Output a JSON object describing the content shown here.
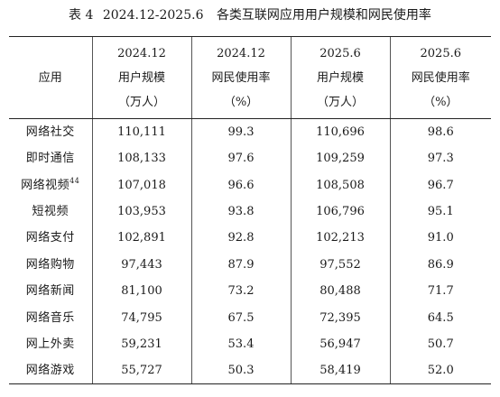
{
  "title": {
    "label": "表 4",
    "period": "2024.12-2025.6",
    "text": "各类互联网应用用户规模和网民使用率"
  },
  "table": {
    "app_header": "应用",
    "columns": [
      {
        "period": "2024.12",
        "metric": "用户规模",
        "unit": "（万人）"
      },
      {
        "period": "2024.12",
        "metric": "网民使用率",
        "unit": "（%）"
      },
      {
        "period": "2025.6",
        "metric": "用户规模",
        "unit": "（万人）"
      },
      {
        "period": "2025.6",
        "metric": "网民使用率",
        "unit": "（%）"
      }
    ],
    "rows": [
      {
        "name": "网络社交",
        "note": "",
        "users_2412": "110,111",
        "rate_2412": "99.3",
        "users_2506": "110,696",
        "rate_2506": "98.6"
      },
      {
        "name": "即时通信",
        "note": "",
        "users_2412": "108,133",
        "rate_2412": "97.6",
        "users_2506": "109,259",
        "rate_2506": "97.3"
      },
      {
        "name": "网络视频",
        "note": "44",
        "users_2412": "107,018",
        "rate_2412": "96.6",
        "users_2506": "108,508",
        "rate_2506": "96.7"
      },
      {
        "name": "短视频",
        "note": "",
        "users_2412": "103,953",
        "rate_2412": "93.8",
        "users_2506": "106,796",
        "rate_2506": "95.1"
      },
      {
        "name": "网络支付",
        "note": "",
        "users_2412": "102,891",
        "rate_2412": "92.8",
        "users_2506": "102,213",
        "rate_2506": "91.0"
      },
      {
        "name": "网络购物",
        "note": "",
        "users_2412": "97,443",
        "rate_2412": "87.9",
        "users_2506": "97,552",
        "rate_2506": "86.9"
      },
      {
        "name": "网络新闻",
        "note": "",
        "users_2412": "81,100",
        "rate_2412": "73.2",
        "users_2506": "80,488",
        "rate_2506": "71.7"
      },
      {
        "name": "网络音乐",
        "note": "",
        "users_2412": "74,795",
        "rate_2412": "67.5",
        "users_2506": "72,395",
        "rate_2506": "64.5"
      },
      {
        "name": "网上外卖",
        "note": "",
        "users_2412": "59,231",
        "rate_2412": "53.4",
        "users_2506": "56,947",
        "rate_2506": "50.7"
      },
      {
        "name": "网络游戏",
        "note": "",
        "users_2412": "55,727",
        "rate_2412": "50.3",
        "users_2506": "58,419",
        "rate_2506": "52.0"
      }
    ]
  }
}
